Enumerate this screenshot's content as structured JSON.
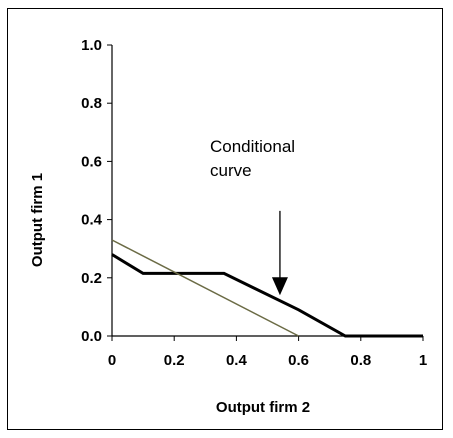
{
  "chart_data": {
    "type": "line",
    "xlabel": "Output firm 2",
    "ylabel": "Output firm 1",
    "xlim": [
      0,
      1
    ],
    "ylim": [
      0,
      1
    ],
    "x_ticks": [
      "0",
      "0.2",
      "0.4",
      "0.6",
      "0.8",
      "1"
    ],
    "y_ticks": [
      "0.0",
      "0.2",
      "0.4",
      "0.6",
      "0.8",
      "1.0"
    ],
    "grid": false,
    "series": [
      {
        "color": "#000000",
        "points": [
          [
            0,
            0.28
          ],
          [
            0.1,
            0.215
          ],
          [
            0.36,
            0.215
          ],
          [
            0.6,
            0.09
          ],
          [
            0.75,
            0.0
          ],
          [
            1.0,
            0.0
          ]
        ]
      },
      {
        "color": "#6b6b45",
        "points": [
          [
            0,
            0.33
          ],
          [
            0.6,
            0.0
          ]
        ]
      }
    ],
    "annotation": {
      "line1": "Conditional",
      "line2": "curve",
      "arrow_from": [
        0.54,
        0.43
      ],
      "arrow_to": [
        0.54,
        0.14
      ]
    }
  }
}
